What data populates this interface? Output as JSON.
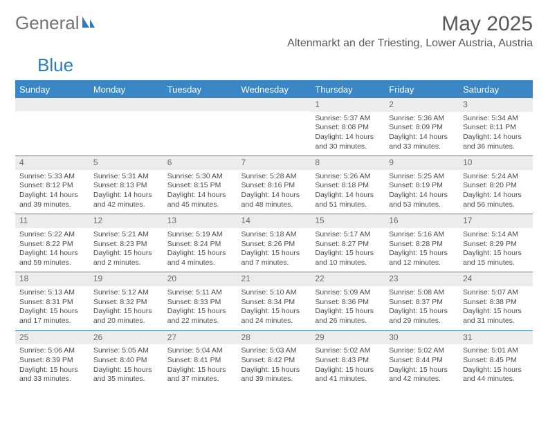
{
  "brand": {
    "part1": "General",
    "part2": "Blue"
  },
  "title": "May 2025",
  "location": "Altenmarkt an der Triesting, Lower Austria, Austria",
  "colors": {
    "header_bg": "#3b86c4",
    "header_text": "#ffffff",
    "daynum_bg": "#ececec",
    "rule": "#3b86c4",
    "text": "#4a4a4a",
    "title_text": "#595959"
  },
  "weekdays": [
    "Sunday",
    "Monday",
    "Tuesday",
    "Wednesday",
    "Thursday",
    "Friday",
    "Saturday"
  ],
  "weeks": [
    [
      null,
      null,
      null,
      null,
      {
        "n": "1",
        "sr": "Sunrise: 5:37 AM",
        "ss": "Sunset: 8:08 PM",
        "dl": "Daylight: 14 hours and 30 minutes."
      },
      {
        "n": "2",
        "sr": "Sunrise: 5:36 AM",
        "ss": "Sunset: 8:09 PM",
        "dl": "Daylight: 14 hours and 33 minutes."
      },
      {
        "n": "3",
        "sr": "Sunrise: 5:34 AM",
        "ss": "Sunset: 8:11 PM",
        "dl": "Daylight: 14 hours and 36 minutes."
      }
    ],
    [
      {
        "n": "4",
        "sr": "Sunrise: 5:33 AM",
        "ss": "Sunset: 8:12 PM",
        "dl": "Daylight: 14 hours and 39 minutes."
      },
      {
        "n": "5",
        "sr": "Sunrise: 5:31 AM",
        "ss": "Sunset: 8:13 PM",
        "dl": "Daylight: 14 hours and 42 minutes."
      },
      {
        "n": "6",
        "sr": "Sunrise: 5:30 AM",
        "ss": "Sunset: 8:15 PM",
        "dl": "Daylight: 14 hours and 45 minutes."
      },
      {
        "n": "7",
        "sr": "Sunrise: 5:28 AM",
        "ss": "Sunset: 8:16 PM",
        "dl": "Daylight: 14 hours and 48 minutes."
      },
      {
        "n": "8",
        "sr": "Sunrise: 5:26 AM",
        "ss": "Sunset: 8:18 PM",
        "dl": "Daylight: 14 hours and 51 minutes."
      },
      {
        "n": "9",
        "sr": "Sunrise: 5:25 AM",
        "ss": "Sunset: 8:19 PM",
        "dl": "Daylight: 14 hours and 53 minutes."
      },
      {
        "n": "10",
        "sr": "Sunrise: 5:24 AM",
        "ss": "Sunset: 8:20 PM",
        "dl": "Daylight: 14 hours and 56 minutes."
      }
    ],
    [
      {
        "n": "11",
        "sr": "Sunrise: 5:22 AM",
        "ss": "Sunset: 8:22 PM",
        "dl": "Daylight: 14 hours and 59 minutes."
      },
      {
        "n": "12",
        "sr": "Sunrise: 5:21 AM",
        "ss": "Sunset: 8:23 PM",
        "dl": "Daylight: 15 hours and 2 minutes."
      },
      {
        "n": "13",
        "sr": "Sunrise: 5:19 AM",
        "ss": "Sunset: 8:24 PM",
        "dl": "Daylight: 15 hours and 4 minutes."
      },
      {
        "n": "14",
        "sr": "Sunrise: 5:18 AM",
        "ss": "Sunset: 8:26 PM",
        "dl": "Daylight: 15 hours and 7 minutes."
      },
      {
        "n": "15",
        "sr": "Sunrise: 5:17 AM",
        "ss": "Sunset: 8:27 PM",
        "dl": "Daylight: 15 hours and 10 minutes."
      },
      {
        "n": "16",
        "sr": "Sunrise: 5:16 AM",
        "ss": "Sunset: 8:28 PM",
        "dl": "Daylight: 15 hours and 12 minutes."
      },
      {
        "n": "17",
        "sr": "Sunrise: 5:14 AM",
        "ss": "Sunset: 8:29 PM",
        "dl": "Daylight: 15 hours and 15 minutes."
      }
    ],
    [
      {
        "n": "18",
        "sr": "Sunrise: 5:13 AM",
        "ss": "Sunset: 8:31 PM",
        "dl": "Daylight: 15 hours and 17 minutes."
      },
      {
        "n": "19",
        "sr": "Sunrise: 5:12 AM",
        "ss": "Sunset: 8:32 PM",
        "dl": "Daylight: 15 hours and 20 minutes."
      },
      {
        "n": "20",
        "sr": "Sunrise: 5:11 AM",
        "ss": "Sunset: 8:33 PM",
        "dl": "Daylight: 15 hours and 22 minutes."
      },
      {
        "n": "21",
        "sr": "Sunrise: 5:10 AM",
        "ss": "Sunset: 8:34 PM",
        "dl": "Daylight: 15 hours and 24 minutes."
      },
      {
        "n": "22",
        "sr": "Sunrise: 5:09 AM",
        "ss": "Sunset: 8:36 PM",
        "dl": "Daylight: 15 hours and 26 minutes."
      },
      {
        "n": "23",
        "sr": "Sunrise: 5:08 AM",
        "ss": "Sunset: 8:37 PM",
        "dl": "Daylight: 15 hours and 29 minutes."
      },
      {
        "n": "24",
        "sr": "Sunrise: 5:07 AM",
        "ss": "Sunset: 8:38 PM",
        "dl": "Daylight: 15 hours and 31 minutes."
      }
    ],
    [
      {
        "n": "25",
        "sr": "Sunrise: 5:06 AM",
        "ss": "Sunset: 8:39 PM",
        "dl": "Daylight: 15 hours and 33 minutes."
      },
      {
        "n": "26",
        "sr": "Sunrise: 5:05 AM",
        "ss": "Sunset: 8:40 PM",
        "dl": "Daylight: 15 hours and 35 minutes."
      },
      {
        "n": "27",
        "sr": "Sunrise: 5:04 AM",
        "ss": "Sunset: 8:41 PM",
        "dl": "Daylight: 15 hours and 37 minutes."
      },
      {
        "n": "28",
        "sr": "Sunrise: 5:03 AM",
        "ss": "Sunset: 8:42 PM",
        "dl": "Daylight: 15 hours and 39 minutes."
      },
      {
        "n": "29",
        "sr": "Sunrise: 5:02 AM",
        "ss": "Sunset: 8:43 PM",
        "dl": "Daylight: 15 hours and 41 minutes."
      },
      {
        "n": "30",
        "sr": "Sunrise: 5:02 AM",
        "ss": "Sunset: 8:44 PM",
        "dl": "Daylight: 15 hours and 42 minutes."
      },
      {
        "n": "31",
        "sr": "Sunrise: 5:01 AM",
        "ss": "Sunset: 8:45 PM",
        "dl": "Daylight: 15 hours and 44 minutes."
      }
    ]
  ]
}
